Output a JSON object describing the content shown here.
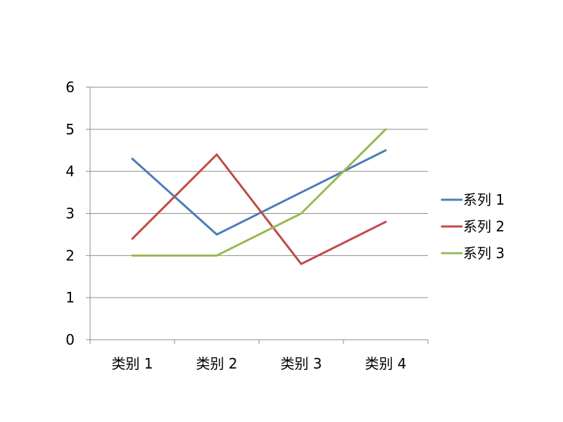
{
  "chart_data": {
    "type": "line",
    "categories": [
      "类别 1",
      "类别 2",
      "类别 3",
      "类别 4"
    ],
    "series": [
      {
        "name": "系列 1",
        "values": [
          4.3,
          2.5,
          3.5,
          4.5
        ],
        "color": "#4a7ebb"
      },
      {
        "name": "系列 2",
        "values": [
          2.4,
          4.4,
          1.8,
          2.8
        ],
        "color": "#be4b48"
      },
      {
        "name": "系列 3",
        "values": [
          2,
          2,
          3,
          5
        ],
        "color": "#98b954"
      }
    ],
    "ylim": [
      0,
      6
    ],
    "yticks": [
      "0",
      "1",
      "2",
      "3",
      "4",
      "5",
      "6"
    ],
    "grid": "horizontal",
    "legend_position": "right"
  }
}
